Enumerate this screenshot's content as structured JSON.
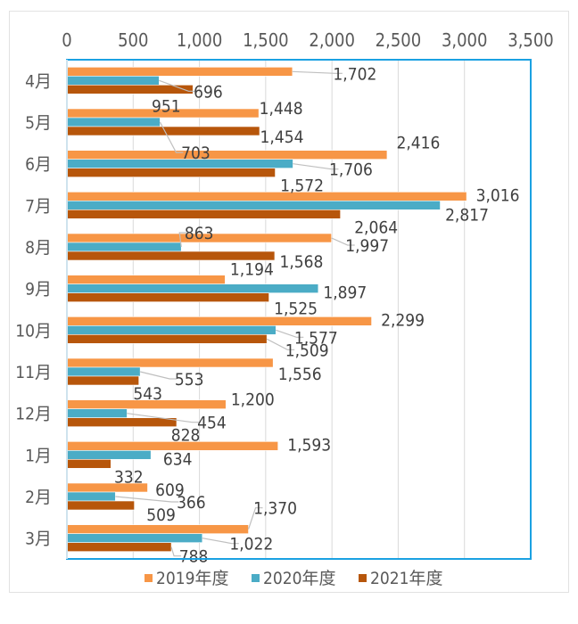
{
  "chart_data": {
    "type": "bar",
    "orientation": "horizontal",
    "title": "",
    "xlabel": "",
    "ylabel": "",
    "xlim": [
      0,
      3500
    ],
    "x_ticks": [
      0,
      500,
      1000,
      1500,
      2000,
      2500,
      3000,
      3500
    ],
    "x_tick_labels": [
      "0",
      "500",
      "1,000",
      "1,500",
      "2,000",
      "2,500",
      "3,000",
      "3,500"
    ],
    "x_axis_position": "top",
    "grid": true,
    "categories": [
      "4月",
      "5月",
      "6月",
      "7月",
      "8月",
      "9月",
      "10月",
      "11月",
      "12月",
      "1月",
      "2月",
      "3月"
    ],
    "series": [
      {
        "name": "2019年度",
        "color": "#F79646",
        "values": [
          1702,
          1448,
          2416,
          3016,
          1997,
          1194,
          2299,
          1556,
          1200,
          1593,
          609,
          1370
        ],
        "labels": [
          "1,702",
          "1,448",
          "2,416",
          "3,016",
          "1,997",
          "1,194",
          "2,299",
          "1,556",
          "1,200",
          "1,593",
          "609",
          "1,370"
        ]
      },
      {
        "name": "2020年度",
        "color": "#4BACC6",
        "values": [
          696,
          703,
          1706,
          2817,
          863,
          1897,
          1577,
          553,
          454,
          634,
          366,
          1022
        ],
        "labels": [
          "696",
          "703",
          "1,706",
          "2,817",
          "863",
          "1,897",
          "1,577",
          "553",
          "454",
          "634",
          "366",
          "1,022"
        ]
      },
      {
        "name": "2021年度",
        "color": "#B7560B",
        "values": [
          951,
          1454,
          1572,
          2064,
          1568,
          1525,
          1509,
          543,
          828,
          332,
          509,
          788
        ],
        "labels": [
          "951",
          "1,454",
          "1,572",
          "2,064",
          "1,568",
          "1,525",
          "1,509",
          "543",
          "828",
          "332",
          "509",
          "788"
        ]
      }
    ],
    "legend": {
      "position": "bottom",
      "entries": [
        "2019年度",
        "2020年度",
        "2021年度"
      ]
    },
    "frame_color": "#1BA1E2",
    "grid_color": "#d9d9d9"
  }
}
